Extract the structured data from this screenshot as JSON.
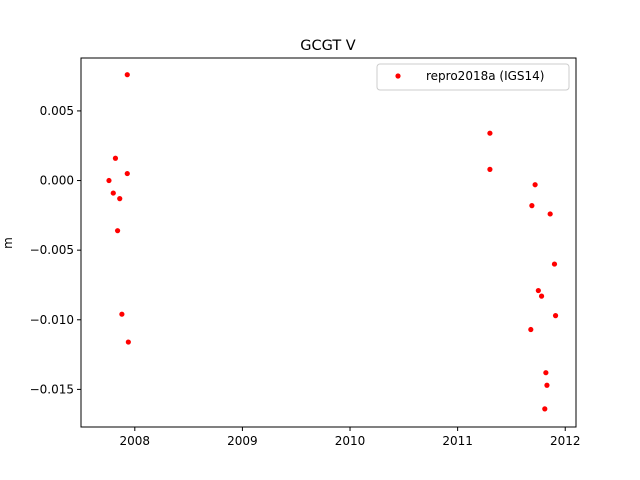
{
  "chart_data": {
    "type": "scatter",
    "title": "GCGT V",
    "xlabel": "",
    "ylabel": "m",
    "xlim": [
      2007.5,
      2012.1
    ],
    "ylim": [
      -0.0177,
      0.0088
    ],
    "xticks": [
      2008,
      2009,
      2010,
      2011,
      2012
    ],
    "xtick_labels": [
      "2008",
      "2009",
      "2010",
      "2011",
      "2012"
    ],
    "yticks": [
      -0.015,
      -0.01,
      -0.005,
      0.0,
      0.005
    ],
    "ytick_labels": [
      "−0.015",
      "−0.010",
      "−0.005",
      "0.000",
      "0.005"
    ],
    "grid": false,
    "legend_position": "top-right",
    "series": [
      {
        "name": "repro2018a (IGS14)",
        "color": "#ff0000",
        "marker": "dot",
        "x": [
          2007.76,
          2007.8,
          2007.82,
          2007.84,
          2007.86,
          2007.88,
          2007.93,
          2007.93,
          2007.94,
          2011.3,
          2011.3,
          2011.68,
          2011.69,
          2011.72,
          2011.75,
          2011.78,
          2011.81,
          2011.82,
          2011.83,
          2011.86,
          2011.9,
          2011.91
        ],
        "y": [
          0.0,
          -0.0009,
          0.0016,
          -0.0036,
          -0.0013,
          -0.0096,
          0.0005,
          0.0076,
          -0.0116,
          0.0034,
          0.0008,
          -0.0107,
          -0.0018,
          -0.0003,
          -0.0079,
          -0.0083,
          -0.0164,
          -0.0138,
          -0.0147,
          -0.0024,
          -0.006,
          -0.0097
        ]
      }
    ]
  }
}
